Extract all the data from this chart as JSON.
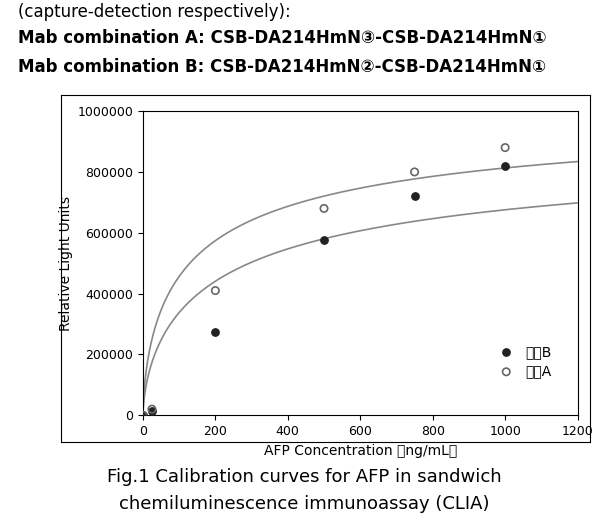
{
  "header_lines": [
    "(capture-detection respectively):",
    "Mab combination A: CSB-DA214HmN③-CSB-DA214HmN①",
    "Mab combination B: CSB-DA214HmN②-CSB-DA214HmN①"
  ],
  "footer_line1": "Fig.1 Calibration curves for AFP in sandwich",
  "footer_line2": "chemiluminescence immunoassay (CLIA)",
  "xlabel": "AFP Concentration （ng/mL）",
  "ylabel": "Relative Light Units",
  "xlim": [
    0,
    1200
  ],
  "ylim": [
    0,
    1000000
  ],
  "xticks": [
    0,
    200,
    400,
    600,
    800,
    1000,
    1200
  ],
  "yticks": [
    0,
    200000,
    400000,
    600000,
    800000,
    1000000
  ],
  "ytick_labels": [
    "0",
    "200000",
    "400000",
    "600000",
    "800000",
    "1000000"
  ],
  "combo_B_x": [
    0,
    25,
    200,
    500,
    750,
    1000
  ],
  "combo_B_y": [
    0,
    15000,
    275000,
    575000,
    720000,
    820000
  ],
  "combo_A_x": [
    0,
    25,
    200,
    500,
    750,
    1000
  ],
  "combo_A_y": [
    0,
    20000,
    410000,
    680000,
    800000,
    880000
  ],
  "legend_label_B": "组合B",
  "legend_label_A": "组合A",
  "line_color": "#888888",
  "marker_B_color": "#222222",
  "marker_A_facecolor": "none",
  "marker_A_edgecolor": "#666666",
  "background_color": "#ffffff",
  "plot_bg_color": "#ffffff",
  "header_fontsize": 12,
  "footer_fontsize": 13,
  "axis_label_fontsize": 10,
  "tick_fontsize": 9,
  "legend_fontsize": 10
}
